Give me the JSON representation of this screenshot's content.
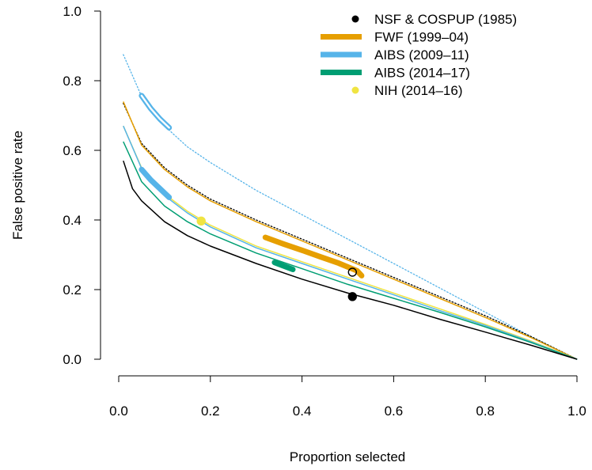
{
  "chart_data": {
    "type": "line",
    "xlabel": "Proportion selected",
    "ylabel": "False positive rate",
    "xlim": [
      0,
      1
    ],
    "ylim": [
      0,
      1
    ],
    "xticks": [
      "0.0",
      "0.2",
      "0.4",
      "0.6",
      "0.8",
      "1.0"
    ],
    "yticks": [
      "0.0",
      "0.2",
      "0.4",
      "0.6",
      "0.8",
      "1.0"
    ],
    "legend_position": "top-right",
    "legend": [
      {
        "label": "NSF & COSPUP (1985)",
        "color": "#000000",
        "marker": "point"
      },
      {
        "label": "FWF (1999–04)",
        "color": "#E69F00",
        "marker": "line"
      },
      {
        "label": "AIBS (2009–11)",
        "color": "#56B4E9",
        "marker": "line"
      },
      {
        "label": "AIBS (2014–17)",
        "color": "#009E73",
        "marker": "line"
      },
      {
        "label": "NIH (2014–16)",
        "color": "#F0E442",
        "marker": "point"
      }
    ],
    "series": [
      {
        "color": "#56B4E9",
        "style": "dotted",
        "x": [
          0.01,
          0.05,
          0.1,
          0.15,
          0.2,
          0.3,
          0.4,
          0.5,
          0.6,
          0.7,
          0.8,
          0.9,
          1.0
        ],
        "y": [
          0.875,
          0.755,
          0.67,
          0.61,
          0.565,
          0.485,
          0.415,
          0.345,
          0.275,
          0.205,
          0.135,
          0.065,
          0.0
        ]
      },
      {
        "color": "#000000",
        "style": "dotted",
        "x": [
          0.01,
          0.05,
          0.1,
          0.15,
          0.2,
          0.3,
          0.4,
          0.5,
          0.6,
          0.7,
          0.8,
          0.9,
          1.0
        ],
        "y": [
          0.735,
          0.62,
          0.55,
          0.5,
          0.46,
          0.4,
          0.345,
          0.29,
          0.235,
          0.18,
          0.125,
          0.065,
          0.0
        ]
      },
      {
        "color": "#E69F00",
        "style": "solid",
        "x": [
          0.01,
          0.05,
          0.1,
          0.15,
          0.2,
          0.3,
          0.4,
          0.5,
          0.6,
          0.7,
          0.8,
          0.9,
          1.0
        ],
        "y": [
          0.74,
          0.615,
          0.545,
          0.495,
          0.455,
          0.395,
          0.34,
          0.285,
          0.23,
          0.175,
          0.12,
          0.062,
          0.0
        ]
      },
      {
        "color": "#F0E442",
        "style": "solid",
        "x": [
          0.01,
          0.05,
          0.1,
          0.15,
          0.2,
          0.3,
          0.4,
          0.5,
          0.6,
          0.7,
          0.8,
          0.9,
          1.0
        ],
        "y": [
          0.67,
          0.55,
          0.475,
          0.425,
          0.385,
          0.325,
          0.28,
          0.235,
          0.19,
          0.145,
          0.1,
          0.052,
          0.0
        ]
      },
      {
        "color": "#56B4E9",
        "style": "solid",
        "x": [
          0.01,
          0.05,
          0.1,
          0.15,
          0.2,
          0.3,
          0.4,
          0.5,
          0.6,
          0.7,
          0.8,
          0.9,
          1.0
        ],
        "y": [
          0.67,
          0.548,
          0.47,
          0.42,
          0.38,
          0.32,
          0.275,
          0.23,
          0.185,
          0.14,
          0.097,
          0.05,
          0.0
        ]
      },
      {
        "color": "#009E73",
        "style": "solid",
        "x": [
          0.01,
          0.05,
          0.1,
          0.15,
          0.2,
          0.3,
          0.4,
          0.5,
          0.6,
          0.7,
          0.8,
          0.9,
          1.0
        ],
        "y": [
          0.625,
          0.51,
          0.44,
          0.395,
          0.36,
          0.305,
          0.26,
          0.215,
          0.175,
          0.135,
          0.093,
          0.048,
          0.0
        ]
      },
      {
        "color": "#000000",
        "style": "solid",
        "x": [
          0.01,
          0.03,
          0.05,
          0.1,
          0.15,
          0.2,
          0.3,
          0.4,
          0.5,
          0.6,
          0.7,
          0.8,
          0.9,
          1.0
        ],
        "y": [
          0.57,
          0.49,
          0.455,
          0.395,
          0.355,
          0.325,
          0.275,
          0.23,
          0.19,
          0.155,
          0.115,
          0.078,
          0.04,
          0.0
        ]
      }
    ],
    "highlight_segments": [
      {
        "color": "#E69F00",
        "x": [
          0.32,
          0.36,
          0.4,
          0.44,
          0.48,
          0.52,
          0.53
        ],
        "y": [
          0.35,
          0.331,
          0.313,
          0.294,
          0.276,
          0.254,
          0.24
        ]
      },
      {
        "color": "#56B4E9",
        "outline": true,
        "x": [
          0.05,
          0.07,
          0.09,
          0.11
        ],
        "y": [
          0.757,
          0.72,
          0.69,
          0.665
        ]
      },
      {
        "color": "#56B4E9",
        "x": [
          0.05,
          0.07,
          0.09,
          0.11
        ],
        "y": [
          0.545,
          0.515,
          0.49,
          0.465
        ]
      },
      {
        "color": "#009E73",
        "x": [
          0.34,
          0.36,
          0.38
        ],
        "y": [
          0.278,
          0.268,
          0.258
        ]
      }
    ],
    "points": [
      {
        "label": "NSF & COSPUP (1985)",
        "x": 0.51,
        "y": 0.18,
        "color": "#000000",
        "filled": true
      },
      {
        "label": "NSF & COSPUP (1985)",
        "x": 0.51,
        "y": 0.25,
        "color": "#000000",
        "filled": false
      },
      {
        "label": "NIH (2014–16)",
        "x": 0.18,
        "y": 0.397,
        "color": "#F0E442",
        "filled": true
      }
    ]
  }
}
